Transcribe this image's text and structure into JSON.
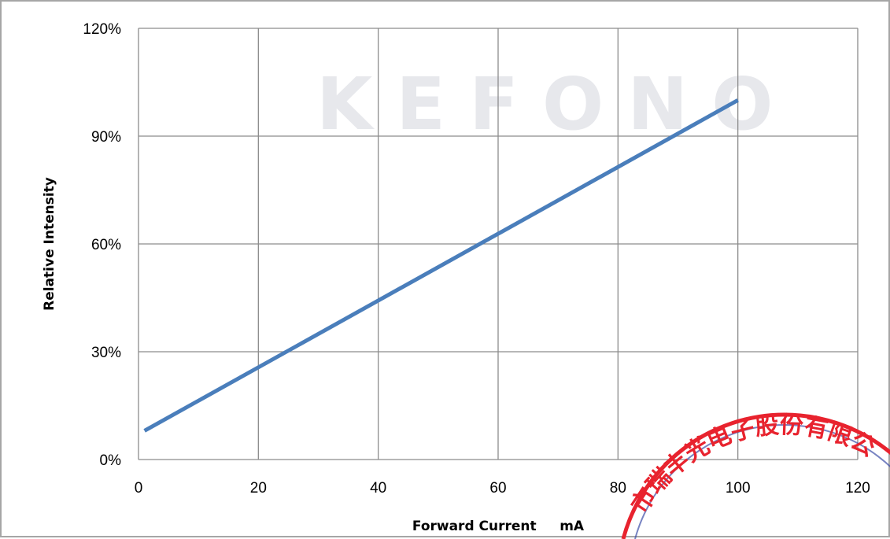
{
  "chart_data": {
    "type": "line",
    "title": "",
    "xlabel": "Forward Current     mA",
    "ylabel": "Relative Intensity",
    "xlim": [
      0,
      120
    ],
    "ylim": [
      0,
      1.2
    ],
    "x_ticks": [
      "0",
      "20",
      "40",
      "60",
      "80",
      "100",
      "120"
    ],
    "y_ticks": [
      "0%",
      "30%",
      "60%",
      "90%",
      "120%"
    ],
    "grid": true,
    "legend": "none",
    "series": [
      {
        "x": [
          1,
          100
        ],
        "y": [
          0.08,
          1.0
        ],
        "color": "#4a7ebb"
      }
    ]
  },
  "watermark": {
    "text": "KEFONO"
  },
  "seal": {
    "text": "市瑞丰光电子股份有限公",
    "color": "#e8232e"
  }
}
